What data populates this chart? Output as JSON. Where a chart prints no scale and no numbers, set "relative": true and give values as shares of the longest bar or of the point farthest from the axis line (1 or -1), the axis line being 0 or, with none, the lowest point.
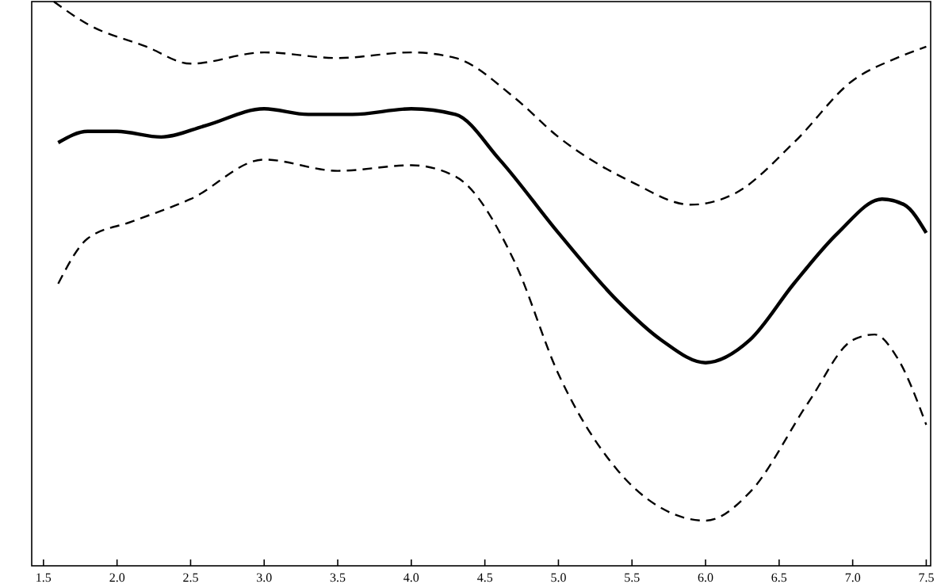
{
  "chart_data": {
    "type": "line",
    "relative": true,
    "xlim": [
      1.42,
      7.53
    ],
    "xticks": [
      {
        "value": 1.5,
        "label": "1.5"
      },
      {
        "value": 2,
        "label": "2.0"
      },
      {
        "value": 2.5,
        "label": "2.5"
      },
      {
        "value": 3,
        "label": "3.0"
      },
      {
        "value": 3.5,
        "label": "3.5"
      },
      {
        "value": 4,
        "label": "4.0"
      },
      {
        "value": 4.5,
        "label": "4.5"
      },
      {
        "value": 5,
        "label": "5.0"
      },
      {
        "value": 5.5,
        "label": "5.5"
      },
      {
        "value": 6,
        "label": "6.0"
      },
      {
        "value": 6.5,
        "label": "6.5"
      },
      {
        "value": 7,
        "label": "7.0"
      },
      {
        "value": 7.5,
        "label": "7.5"
      }
    ],
    "tick_labels": "x",
    "grid": false,
    "series": [
      {
        "color": "#000000",
        "line_style": "solid",
        "x": [
          1.6,
          1.8,
          2.0,
          2.3,
          2.6,
          3.0,
          3.3,
          3.6,
          4.0,
          4.3,
          4.6,
          5.0,
          5.4,
          5.7,
          6.0,
          6.3,
          6.6,
          6.9,
          7.2,
          7.35,
          7.5
        ],
        "values": [
          0.75,
          0.77,
          0.77,
          0.76,
          0.78,
          0.81,
          0.8,
          0.8,
          0.81,
          0.8,
          0.72,
          0.59,
          0.47,
          0.4,
          0.36,
          0.4,
          0.5,
          0.59,
          0.65,
          0.64,
          0.59
        ]
      },
      {
        "color": "#000000",
        "line_style": "dashed",
        "x": [
          1.57,
          1.8,
          2.2,
          2.5,
          3.0,
          3.5,
          4.0,
          4.3,
          4.7,
          5.0,
          5.5,
          5.9,
          6.2,
          6.6,
          7.0,
          7.3,
          7.5
        ],
        "values": [
          1.0,
          0.96,
          0.92,
          0.89,
          0.91,
          0.9,
          0.91,
          0.9,
          0.83,
          0.76,
          0.68,
          0.64,
          0.66,
          0.75,
          0.86,
          0.9,
          0.92
        ]
      },
      {
        "color": "#000000",
        "line_style": "dashed",
        "x": [
          1.6,
          1.8,
          2.1,
          2.5,
          3.0,
          3.5,
          4.0,
          4.3,
          4.7,
          5.0,
          5.4,
          5.8,
          6.0,
          6.3,
          6.7,
          7.0,
          7.15,
          7.3,
          7.5
        ],
        "values": [
          0.5,
          0.58,
          0.61,
          0.65,
          0.72,
          0.7,
          0.71,
          0.69,
          0.54,
          0.34,
          0.17,
          0.09,
          0.08,
          0.13,
          0.29,
          0.4,
          0.41,
          0.37,
          0.25
        ]
      }
    ]
  }
}
